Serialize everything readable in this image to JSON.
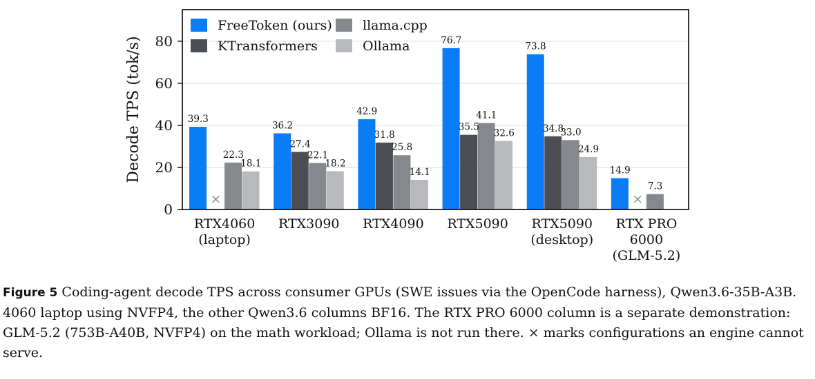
{
  "chart_data": {
    "type": "bar",
    "ylabel": "Decode TPS (tok/s)",
    "ylim": [
      0,
      95
    ],
    "yticks": [
      0,
      20,
      40,
      60,
      80
    ],
    "grid": true,
    "legend_position": "top-left",
    "categories": [
      [
        "RTX4060",
        "(laptop)"
      ],
      [
        "RTX3090"
      ],
      [
        "RTX4090"
      ],
      [
        "RTX5090"
      ],
      [
        "RTX5090",
        "(desktop)"
      ],
      [
        "RTX PRO",
        "6000",
        "(GLM-5.2)"
      ]
    ],
    "series": [
      {
        "name": "FreeToken (ours)",
        "color": "#0a7cf5",
        "values": [
          39.3,
          36.2,
          42.9,
          76.7,
          73.8,
          14.9
        ]
      },
      {
        "name": "KTransformers",
        "color": "#4b4e54",
        "values": [
          null,
          27.4,
          31.8,
          35.5,
          34.8,
          null
        ]
      },
      {
        "name": "llama.cpp",
        "color": "#85888d",
        "values": [
          22.3,
          22.1,
          25.8,
          41.1,
          33.0,
          7.3
        ]
      },
      {
        "name": "Ollama",
        "color": "#b7b9bc",
        "values": [
          18.1,
          18.2,
          14.1,
          32.6,
          24.9,
          null
        ]
      }
    ],
    "unsupported": [
      {
        "category": 0,
        "series": 1
      },
      {
        "category": 5,
        "series": 1
      }
    ],
    "unsupported_mark": "×",
    "value_format_decimals": 1
  },
  "caption": {
    "label": "Figure 5",
    "text": "Coding-agent decode TPS across consumer GPUs (SWE issues via the OpenCode harness), Qwen3.6-35B-A3B. 4060 laptop using NVFP4, the other Qwen3.6 columns BF16. The RTX PRO 6000 column is a separate demonstration: GLM-5.2 (753B-A40B, NVFP4) on the math workload; Ollama is not run there. × marks configurations an engine cannot serve."
  }
}
